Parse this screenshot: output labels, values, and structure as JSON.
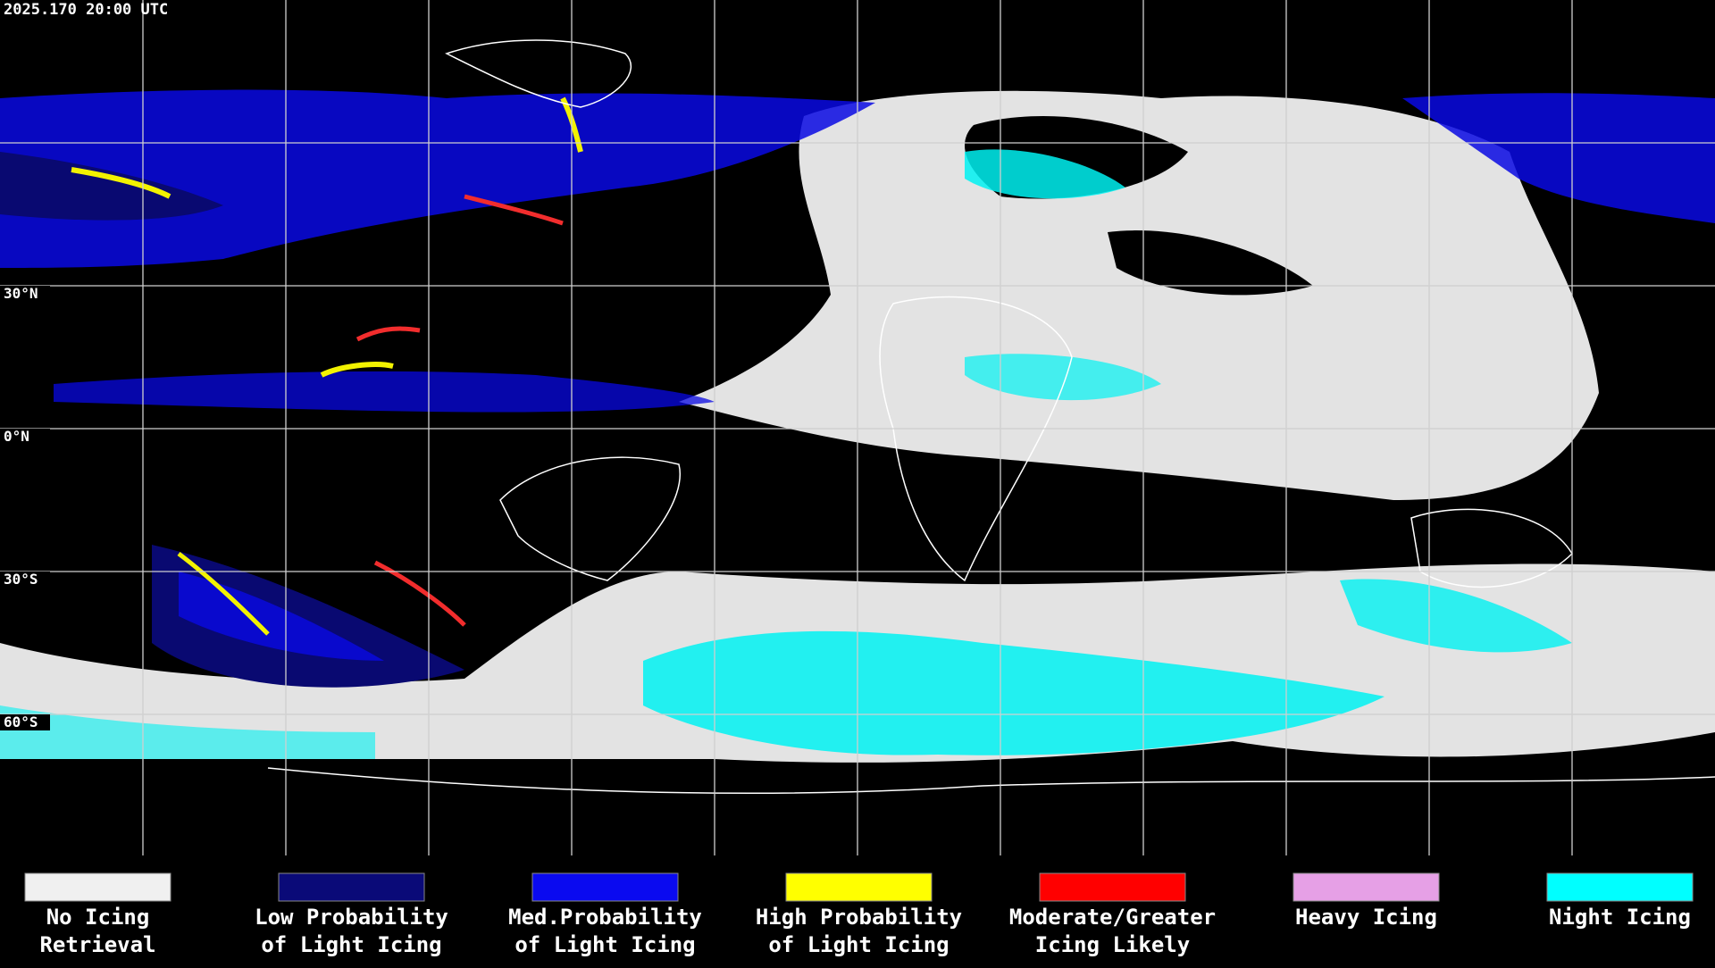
{
  "header": {
    "timestamp": "2025.170 20:00 UTC"
  },
  "latitude_labels": [
    "30°N",
    "0°N",
    "30°S",
    "60°S"
  ],
  "legend": {
    "items": [
      {
        "label_lines": [
          "No Icing",
          "Retrieval"
        ],
        "color": "#f0f0f0"
      },
      {
        "label_lines": [
          "Low Probability",
          "of Light Icing"
        ],
        "color": "#0a0a78"
      },
      {
        "label_lines": [
          "Med.Probability",
          "of Light Icing"
        ],
        "color": "#0a0af0"
      },
      {
        "label_lines": [
          "High Probability",
          "of Light Icing"
        ],
        "color": "#ffff00"
      },
      {
        "label_lines": [
          "Moderate/Greater",
          "Icing Likely"
        ],
        "color": "#ff0000"
      },
      {
        "label_lines": [
          "Heavy Icing"
        ],
        "color": "#e6a0e6"
      },
      {
        "label_lines": [
          "Night Icing"
        ],
        "color": "#00ffff"
      }
    ]
  }
}
